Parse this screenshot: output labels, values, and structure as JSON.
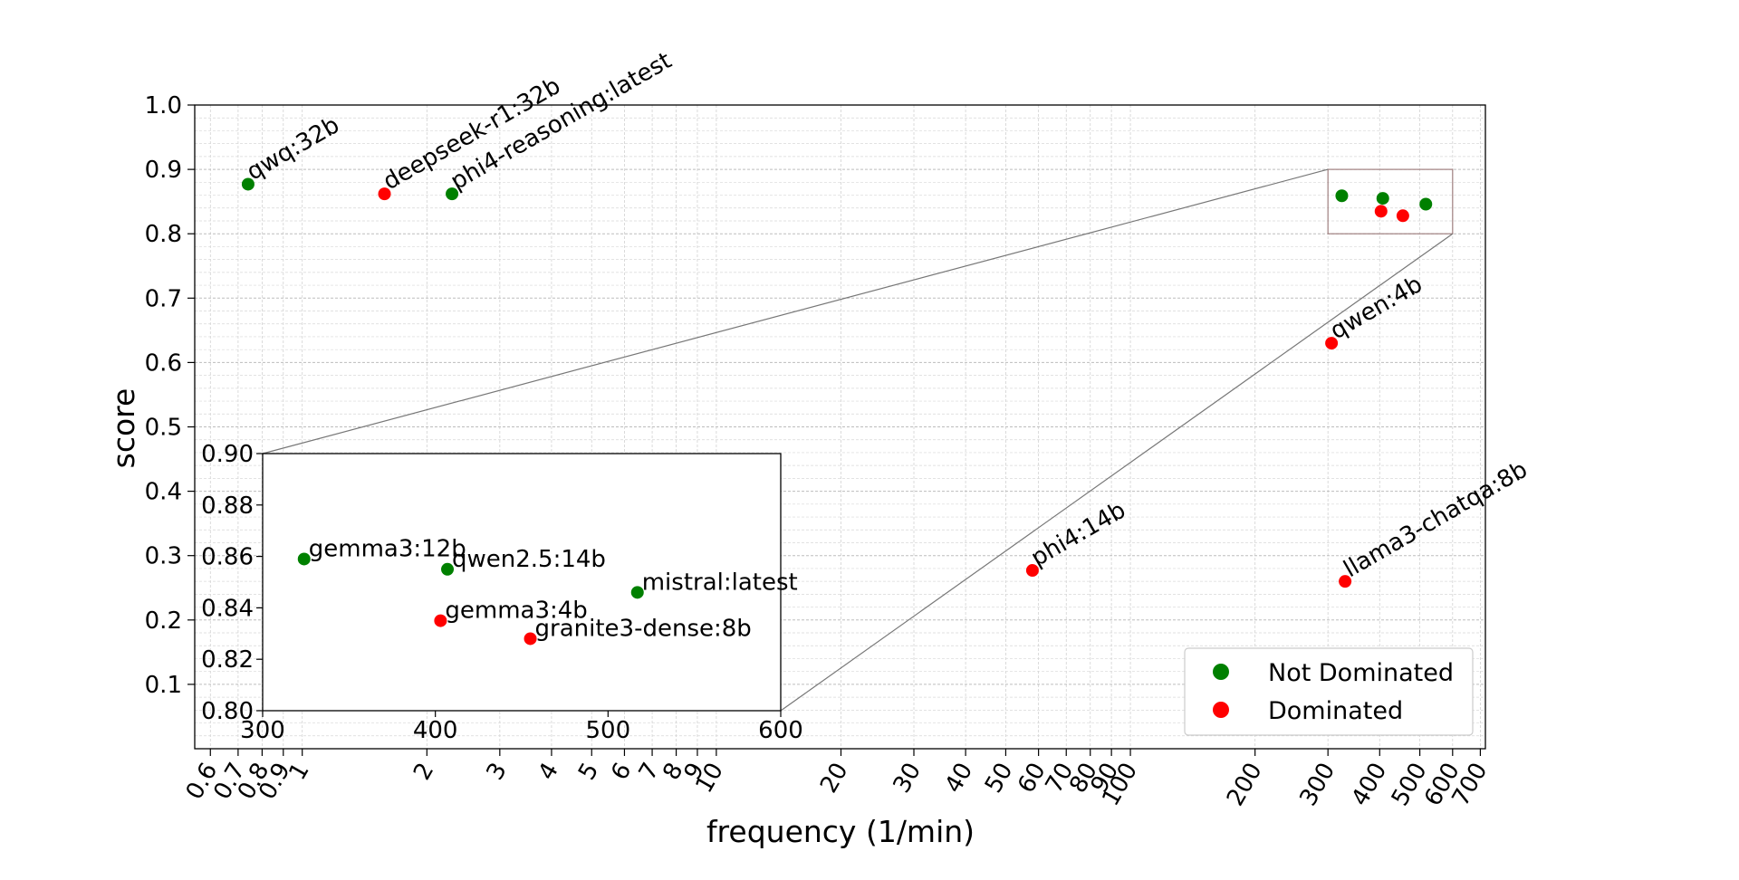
{
  "chart_data": {
    "type": "scatter",
    "title": "",
    "xlabel": "frequency (1/min)",
    "ylabel": "score",
    "xscale": "log",
    "xlim": [
      0.55,
      720
    ],
    "ylim": [
      0.0,
      1.0
    ],
    "grid": true,
    "legend_position": "bottom-right",
    "x_ticks": [
      {
        "value": 0.6,
        "label": "0.6"
      },
      {
        "value": 0.7,
        "label": "0.7"
      },
      {
        "value": 0.8,
        "label": "0.8"
      },
      {
        "value": 0.9,
        "label": "0.9"
      },
      {
        "value": 1,
        "label": "1"
      },
      {
        "value": 2,
        "label": "2"
      },
      {
        "value": 3,
        "label": "3"
      },
      {
        "value": 4,
        "label": "4"
      },
      {
        "value": 5,
        "label": "5"
      },
      {
        "value": 6,
        "label": "6"
      },
      {
        "value": 7,
        "label": "7"
      },
      {
        "value": 8,
        "label": "8"
      },
      {
        "value": 9,
        "label": "9"
      },
      {
        "value": 10,
        "label": "10"
      },
      {
        "value": 20,
        "label": "20"
      },
      {
        "value": 30,
        "label": "30"
      },
      {
        "value": 40,
        "label": "40"
      },
      {
        "value": 50,
        "label": "50"
      },
      {
        "value": 60,
        "label": "60"
      },
      {
        "value": 70,
        "label": "70"
      },
      {
        "value": 80,
        "label": "80"
      },
      {
        "value": 90,
        "label": "90"
      },
      {
        "value": 100,
        "label": "100"
      },
      {
        "value": 200,
        "label": "200"
      },
      {
        "value": 300,
        "label": "300"
      },
      {
        "value": 400,
        "label": "400"
      },
      {
        "value": 500,
        "label": "500"
      },
      {
        "value": 600,
        "label": "600"
      },
      {
        "value": 700,
        "label": "700"
      }
    ],
    "y_ticks": [
      {
        "value": 0.1,
        "label": "0.1"
      },
      {
        "value": 0.2,
        "label": "0.2"
      },
      {
        "value": 0.3,
        "label": "0.3"
      },
      {
        "value": 0.4,
        "label": "0.4"
      },
      {
        "value": 0.5,
        "label": "0.5"
      },
      {
        "value": 0.6,
        "label": "0.6"
      },
      {
        "value": 0.7,
        "label": "0.7"
      },
      {
        "value": 0.8,
        "label": "0.8"
      },
      {
        "value": 0.9,
        "label": "0.9"
      },
      {
        "value": 1.0,
        "label": "1.0"
      }
    ],
    "series": [
      {
        "name": "Not Dominated",
        "color": "#008000"
      },
      {
        "name": "Dominated",
        "color": "#ff0000"
      }
    ],
    "points": [
      {
        "name": "qwq:32b",
        "x": 0.74,
        "y": 0.877,
        "series": "Not Dominated"
      },
      {
        "name": "deepseek-r1:32b",
        "x": 1.58,
        "y": 0.862,
        "series": "Dominated"
      },
      {
        "name": "phi4-reasoning:latest",
        "x": 2.3,
        "y": 0.862,
        "series": "Not Dominated"
      },
      {
        "name": "qwen:4b",
        "x": 306,
        "y": 0.63,
        "series": "Dominated"
      },
      {
        "name": "phi4:14b",
        "x": 58,
        "y": 0.277,
        "series": "Dominated"
      },
      {
        "name": "llama3-chatqa:8b",
        "x": 330,
        "y": 0.26,
        "series": "Dominated"
      },
      {
        "name": "gemma3:12b",
        "x": 324,
        "y": 0.859,
        "series": "Not Dominated"
      },
      {
        "name": "qwen2.5:14b",
        "x": 407,
        "y": 0.855,
        "series": "Not Dominated"
      },
      {
        "name": "mistral:latest",
        "x": 517,
        "y": 0.846,
        "series": "Not Dominated"
      },
      {
        "name": "gemma3:4b",
        "x": 403,
        "y": 0.835,
        "series": "Dominated"
      },
      {
        "name": "granite3-dense:8b",
        "x": 455,
        "y": 0.828,
        "series": "Dominated"
      }
    ],
    "inset": {
      "xlim": [
        300,
        600
      ],
      "ylim": [
        0.8,
        0.9
      ],
      "x_ticks": [
        {
          "value": 300,
          "label": "300"
        },
        {
          "value": 400,
          "label": "400"
        },
        {
          "value": 500,
          "label": "500"
        },
        {
          "value": 600,
          "label": "600"
        }
      ],
      "y_ticks": [
        {
          "value": 0.8,
          "label": "0.80"
        },
        {
          "value": 0.82,
          "label": "0.82"
        },
        {
          "value": 0.84,
          "label": "0.84"
        },
        {
          "value": 0.86,
          "label": "0.86"
        },
        {
          "value": 0.88,
          "label": "0.88"
        },
        {
          "value": 0.9,
          "label": "0.90"
        }
      ],
      "labeled_points": [
        "gemma3:12b",
        "qwen2.5:14b",
        "mistral:latest",
        "gemma3:4b",
        "granite3-dense:8b"
      ]
    }
  }
}
